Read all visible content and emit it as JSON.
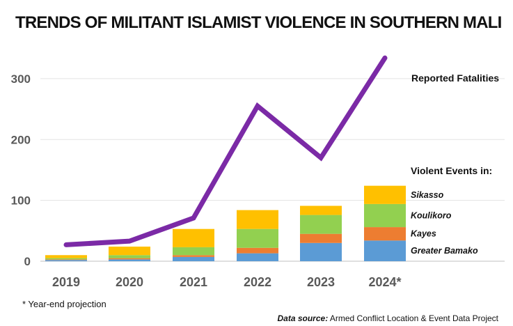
{
  "chart_data": {
    "type": "bar",
    "title": "TRENDS OF MILITANT ISLAMIST VIOLENCE IN SOUTHERN MALI",
    "categories": [
      "2019",
      "2020",
      "2021",
      "2022",
      "2023",
      "2024*"
    ],
    "yticks": [
      "0",
      "100",
      "200",
      "300"
    ],
    "ylim": [
      0,
      350
    ],
    "grid": true,
    "stack_heading": "Violent Events in:",
    "series": [
      {
        "name": "Greater Bamako",
        "color": "#5B9BD5",
        "values": [
          2,
          3,
          7,
          13,
          30,
          34
        ]
      },
      {
        "name": "Kayes",
        "color": "#ED7D31",
        "values": [
          1,
          2,
          3,
          9,
          15,
          22
        ]
      },
      {
        "name": "Koulikoro",
        "color": "#92D050",
        "values": [
          2,
          5,
          13,
          31,
          31,
          38
        ]
      },
      {
        "name": "Sikasso",
        "color": "#FFC000",
        "values": [
          5,
          14,
          30,
          31,
          15,
          30
        ]
      }
    ],
    "line": {
      "name": "Reported Fatalities",
      "color": "#7B2AA6",
      "values": [
        27,
        33,
        71,
        255,
        170,
        334
      ]
    },
    "footnote": "* Year-end projection",
    "source_label": "Data source:",
    "source_text": " Armed Conflict Location & Event Data Project"
  }
}
